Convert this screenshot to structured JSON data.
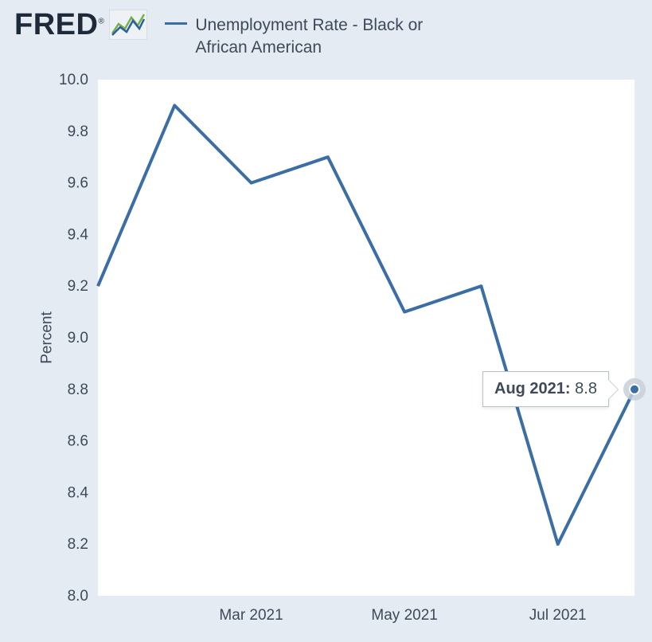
{
  "header": {
    "logo_text": "FRED",
    "legend_label": "Unemployment Rate - Black or African American"
  },
  "chart": {
    "type": "line",
    "ylabel": "Percent",
    "ylim": [
      8.0,
      10.0
    ],
    "ytick_step": 0.2,
    "yticks": [
      "8.0",
      "8.2",
      "8.4",
      "8.6",
      "8.8",
      "9.0",
      "9.2",
      "9.4",
      "9.6",
      "9.8",
      "10.0"
    ],
    "xticks": [
      "Mar 2021",
      "May 2021",
      "Jul 2021"
    ],
    "xtick_indices": [
      2,
      4,
      6
    ],
    "series": {
      "color": "#3a6ea5",
      "line_width": 4,
      "months": [
        "Jan 2021",
        "Feb 2021",
        "Mar 2021",
        "Apr 2021",
        "May 2021",
        "Jun 2021",
        "Jul 2021",
        "Aug 2021"
      ],
      "values": [
        9.2,
        9.9,
        9.6,
        9.7,
        9.1,
        9.2,
        8.2,
        8.8
      ]
    },
    "highlight": {
      "index": 7,
      "label": "Aug 2021:",
      "value": "8.8"
    },
    "colors": {
      "background": "#e4ebf2",
      "plot_bg": "#ffffff",
      "axis_text": "#3e4a5a",
      "tooltip_border": "#b8c0c8",
      "marker_halo": "#c8d0d8"
    },
    "fontsize": {
      "axis": 19,
      "legend": 21,
      "tooltip": 20
    }
  }
}
